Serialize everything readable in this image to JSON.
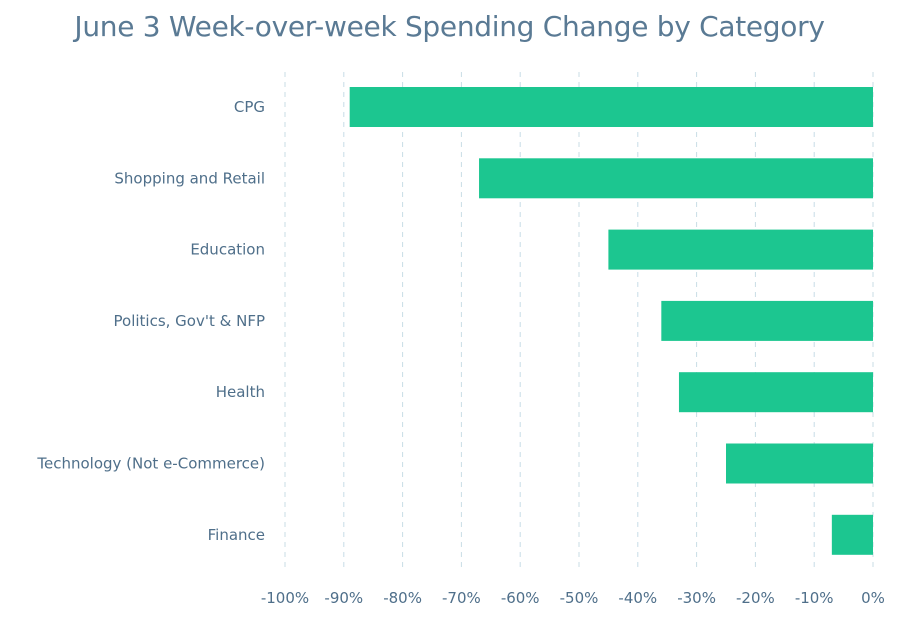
{
  "chart_data": {
    "type": "bar",
    "orientation": "horizontal",
    "title": "June 3 Week-over-week Spending Change by Category",
    "categories": [
      "CPG",
      "Shopping and Retail",
      "Education",
      "Politics, Gov't & NFP",
      "Health",
      "Technology (Not e-Commerce)",
      "Finance"
    ],
    "values": [
      -89,
      -67,
      -45,
      -36,
      -33,
      -25,
      -7
    ],
    "xlim": [
      -100,
      0
    ],
    "ticks": [
      -100,
      -90,
      -80,
      -70,
      -60,
      -50,
      -40,
      -30,
      -20,
      -10,
      0
    ],
    "tick_labels": [
      "-100%",
      "-90%",
      "-80%",
      "-70%",
      "-60%",
      "-50%",
      "-40%",
      "-30%",
      "-20%",
      "-10%",
      "0%"
    ],
    "grid": true,
    "bar_color": "#1cc690",
    "xlabel": "",
    "ylabel": ""
  }
}
